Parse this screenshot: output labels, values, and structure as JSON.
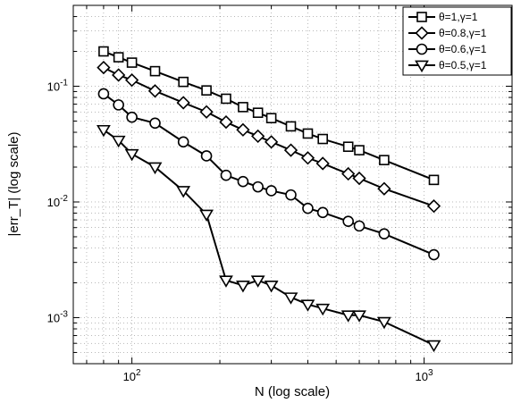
{
  "chart_data": {
    "type": "line",
    "title": "",
    "xlabel": "N (log scale)",
    "ylabel": "|err_T| (log scale)",
    "xscale": "log",
    "yscale": "log",
    "xlim": [
      63,
      2000
    ],
    "ylim": [
      0.0004,
      0.5
    ],
    "grid": true,
    "legend_position": "top-right",
    "x_tick_labels": [
      {
        "value": 100,
        "base": "10",
        "exp": "2"
      },
      {
        "value": 1000,
        "base": "10",
        "exp": "3"
      }
    ],
    "y_tick_labels": [
      {
        "value": 0.001,
        "base": "10",
        "exp": "-3"
      },
      {
        "value": 0.01,
        "base": "10",
        "exp": "-2"
      },
      {
        "value": 0.1,
        "base": "10",
        "exp": "-1"
      }
    ],
    "series": [
      {
        "name": "θ=1,γ=1",
        "marker": "square",
        "color": "#000000",
        "x": [
          80,
          90,
          100,
          120,
          150,
          180,
          210,
          240,
          270,
          300,
          350,
          400,
          450,
          550,
          600,
          730,
          1080
        ],
        "y": [
          0.2,
          0.178,
          0.16,
          0.135,
          0.109,
          0.092,
          0.078,
          0.066,
          0.059,
          0.053,
          0.045,
          0.039,
          0.035,
          0.03,
          0.028,
          0.023,
          0.0155
        ]
      },
      {
        "name": "θ=0.8,γ=1",
        "marker": "diamond",
        "color": "#000000",
        "x": [
          80,
          90,
          100,
          120,
          150,
          180,
          210,
          240,
          270,
          300,
          350,
          400,
          450,
          550,
          600,
          730,
          1080
        ],
        "y": [
          0.145,
          0.125,
          0.113,
          0.091,
          0.072,
          0.06,
          0.049,
          0.042,
          0.037,
          0.033,
          0.028,
          0.024,
          0.0215,
          0.0175,
          0.016,
          0.013,
          0.0092
        ]
      },
      {
        "name": "θ=0.6,γ=1",
        "marker": "circle",
        "color": "#000000",
        "x": [
          80,
          90,
          100,
          120,
          150,
          180,
          210,
          240,
          270,
          300,
          350,
          400,
          450,
          550,
          600,
          730,
          1080
        ],
        "y": [
          0.086,
          0.069,
          0.054,
          0.048,
          0.033,
          0.025,
          0.017,
          0.015,
          0.0135,
          0.0125,
          0.0115,
          0.0088,
          0.0081,
          0.0068,
          0.0062,
          0.0053,
          0.0035
        ]
      },
      {
        "name": "θ=0.5,γ=1",
        "marker": "triangle-down",
        "color": "#000000",
        "x": [
          80,
          90,
          100,
          120,
          150,
          180,
          210,
          240,
          270,
          300,
          350,
          400,
          450,
          550,
          600,
          730,
          1080
        ],
        "y": [
          0.042,
          0.034,
          0.026,
          0.02,
          0.0125,
          0.0078,
          0.0021,
          0.0019,
          0.0021,
          0.0019,
          0.0015,
          0.0013,
          0.0012,
          0.00105,
          0.00105,
          0.00092,
          0.00058
        ]
      }
    ]
  }
}
